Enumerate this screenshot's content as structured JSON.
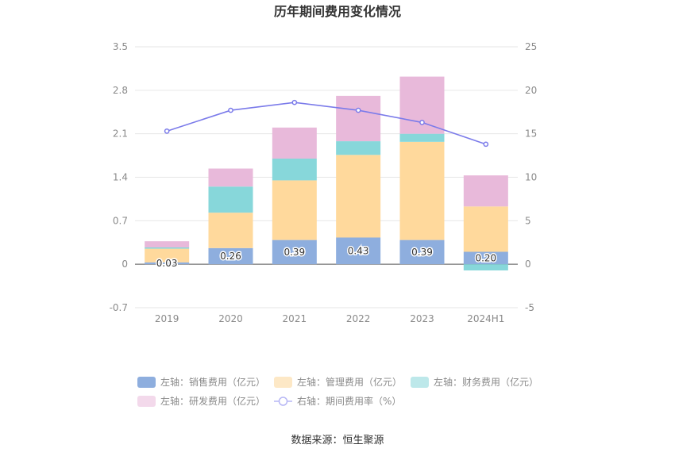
{
  "chart_data": {
    "type": "bar",
    "title": "历年期间费用变化情况",
    "categories": [
      "2019",
      "2020",
      "2021",
      "2022",
      "2023",
      "2024H1"
    ],
    "left_axis": {
      "ylim": [
        -0.7,
        3.5
      ],
      "ticks": [
        "3.5",
        "2.8",
        "2.1",
        "1.4",
        "0.7",
        "0",
        "-0.7"
      ]
    },
    "right_axis": {
      "ylim": [
        -5,
        25
      ],
      "ticks": [
        "25",
        "20",
        "15",
        "10",
        "5",
        "0",
        "-5"
      ]
    },
    "series": [
      {
        "name": "左轴：销售费用（亿元）",
        "type": "bar",
        "axis": "left",
        "color": "#8eaede",
        "values": [
          0.03,
          0.26,
          0.39,
          0.43,
          0.39,
          0.2
        ],
        "labels": [
          "0.03",
          "0.26",
          "0.39",
          "0.43",
          "0.39",
          "0.20"
        ]
      },
      {
        "name": "左轴：管理费用（亿元）",
        "type": "bar",
        "axis": "left",
        "color": "#ffd99c",
        "values": [
          0.22,
          0.57,
          0.96,
          1.33,
          1.58,
          0.73
        ]
      },
      {
        "name": "左轴：财务费用（亿元）",
        "type": "bar",
        "axis": "left",
        "color": "#87d7da",
        "values": [
          0.02,
          0.42,
          0.35,
          0.22,
          0.13,
          -0.1
        ]
      },
      {
        "name": "左轴：研发费用（亿元）",
        "type": "bar",
        "axis": "left",
        "color": "#e8b9da",
        "values": [
          0.1,
          0.29,
          0.5,
          0.73,
          0.92,
          0.5
        ]
      },
      {
        "name": "右轴：期间费用率（%）",
        "type": "line",
        "axis": "right",
        "color": "#7b7bea",
        "values": [
          15.3,
          17.7,
          18.6,
          17.7,
          16.3,
          13.8
        ]
      }
    ],
    "legend_position": "bottom",
    "grid": true
  },
  "source": "数据来源：恒生聚源"
}
